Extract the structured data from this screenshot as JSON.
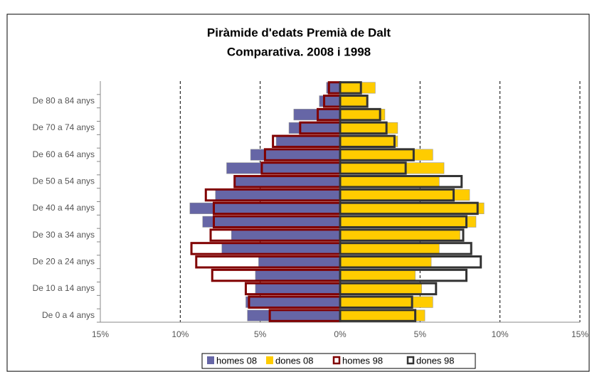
{
  "chart_data": {
    "type": "pyramid",
    "title": "Piràmide d'edats Premià de Dalt",
    "subtitle": "Comparativa. 2008 i 1998",
    "categories": [
      "De 0 a 4 anys",
      null,
      "De 10 a 14 anys",
      null,
      "De 20 a 24 anys",
      null,
      "De 30 a 34 anys",
      null,
      "De 40 a 44 anys",
      null,
      "De 50 a 54 anys",
      null,
      "De 60 a 64 anys",
      null,
      "De 70 a 74 anys",
      null,
      "De 80 a 84 anys",
      null
    ],
    "series": [
      {
        "name": "homes 08",
        "color": "#6666a6",
        "style": "fill",
        "values": [
          -5.8,
          -5.9,
          -5.3,
          -5.3,
          -5.1,
          -7.4,
          -6.8,
          -8.6,
          -9.4,
          -7.8,
          -6.6,
          -7.1,
          -5.6,
          -4.0,
          -3.2,
          -2.9,
          -1.3,
          -0.85
        ]
      },
      {
        "name": "dones 08",
        "color": "#ffcc00",
        "style": "fill",
        "values": [
          5.3,
          5.8,
          5.1,
          4.7,
          5.7,
          6.2,
          7.5,
          8.5,
          9.0,
          8.1,
          6.2,
          6.5,
          5.8,
          3.6,
          3.6,
          2.8,
          1.7,
          2.2
        ]
      },
      {
        "name": "homes 98",
        "color": "#800000",
        "style": "outline",
        "values": [
          -4.4,
          -5.7,
          -5.9,
          -8.0,
          -9.0,
          -9.3,
          -8.1,
          -7.9,
          -7.9,
          -8.4,
          -6.6,
          -4.9,
          -4.7,
          -4.2,
          -2.5,
          -1.4,
          -1.0,
          -0.7
        ]
      },
      {
        "name": "dones 98",
        "color": "#333333",
        "style": "outline",
        "values": [
          4.7,
          4.5,
          6.0,
          7.9,
          8.8,
          8.2,
          7.7,
          7.9,
          8.6,
          7.1,
          7.6,
          4.1,
          4.6,
          3.4,
          2.9,
          2.5,
          1.7,
          1.3
        ]
      }
    ],
    "xlim": [
      -15,
      15
    ],
    "xticks": [
      {
        "value": -15,
        "label": "15%"
      },
      {
        "value": -10,
        "label": "10%"
      },
      {
        "value": -5,
        "label": "5%"
      },
      {
        "value": 0,
        "label": "0%"
      },
      {
        "value": 5,
        "label": "5%"
      },
      {
        "value": 10,
        "label": "10%"
      },
      {
        "value": 15,
        "label": "15%"
      }
    ],
    "grid": true,
    "legend": "bottom"
  }
}
